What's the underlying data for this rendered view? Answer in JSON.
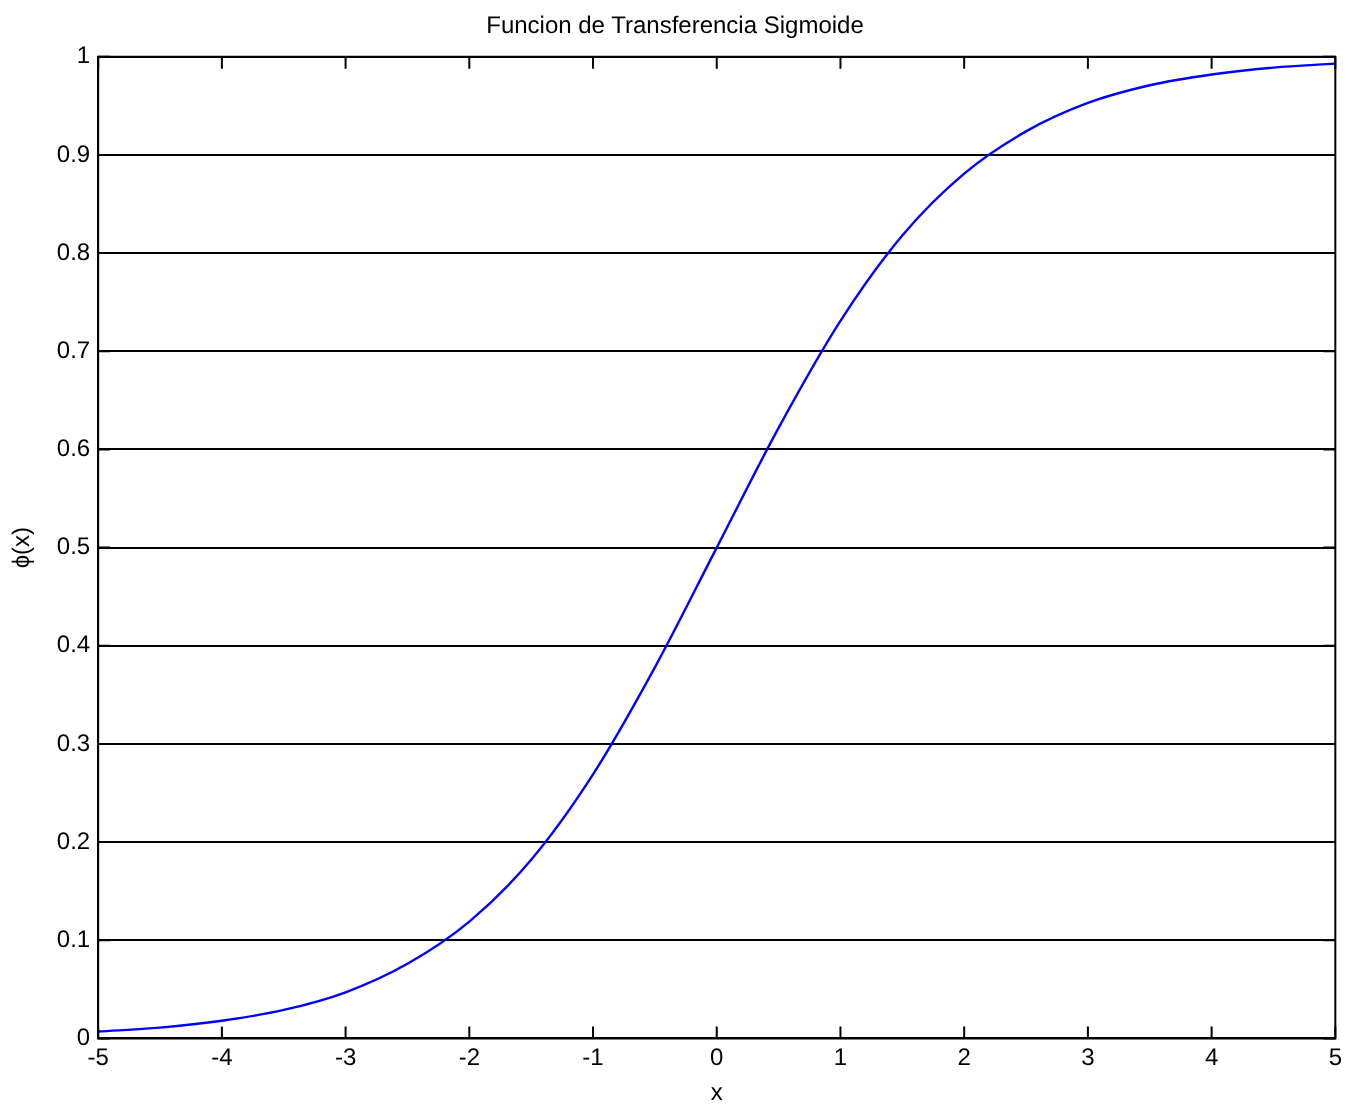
{
  "chart_data": {
    "type": "line",
    "title": "Funcion de Transferencia Sigmoide",
    "xlabel": "x",
    "ylabel": "ϕ(x)",
    "x": [
      -5,
      -4.5,
      -4,
      -3.5,
      -3,
      -2.5,
      -2,
      -1.5,
      -1,
      -0.5,
      0,
      0.5,
      1,
      1.5,
      2,
      2.5,
      3,
      3.5,
      4,
      4.5,
      5
    ],
    "series": [
      {
        "color": "#0000ff",
        "values": [
          0.007,
          0.011,
          0.018,
          0.029,
          0.047,
          0.076,
          0.119,
          0.182,
          0.269,
          0.378,
          0.5,
          0.622,
          0.731,
          0.818,
          0.881,
          0.924,
          0.953,
          0.971,
          0.982,
          0.989,
          0.993
        ]
      }
    ],
    "xlim": [
      -5,
      5
    ],
    "xticks": [
      -5,
      -4,
      -3,
      -2,
      -1,
      0,
      1,
      2,
      3,
      4,
      5
    ],
    "ylim": [
      0,
      1
    ],
    "yticks": [
      0,
      0.1,
      0.2,
      0.3,
      0.4,
      0.5,
      0.6,
      0.7,
      0.8,
      0.9,
      1
    ],
    "grid": "y",
    "legend": false,
    "marker": "none",
    "line_style": "solid"
  }
}
